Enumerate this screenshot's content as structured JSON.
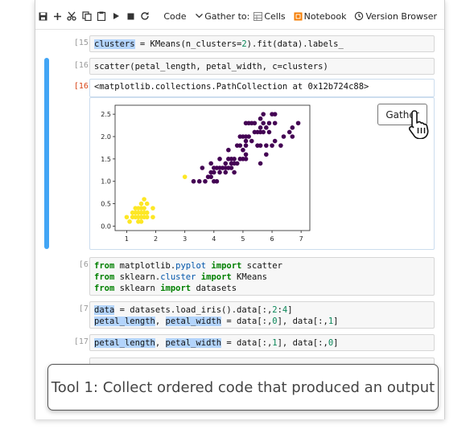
{
  "toolbar": {
    "cell_type": "Code",
    "gather_to_label": "Gather to:",
    "cells_label": "Cells",
    "notebook_label": "Notebook",
    "version_browser_label": "Version Browser"
  },
  "cells": [
    {
      "prompt": "[15]:",
      "tokens": [
        [
          "hl",
          "clusters"
        ],
        [
          "p",
          " = KMeans(n_clusters="
        ],
        [
          "num",
          "2"
        ],
        [
          "p",
          ").fit(data).labels_"
        ]
      ]
    },
    {
      "prompt": "[16]:",
      "tokens": [
        [
          "p",
          "scatter(petal_length, petal_width, c=clusters)"
        ]
      ]
    },
    {
      "prompt": "[6]:",
      "lines": [
        [
          [
            "kw",
            "from"
          ],
          [
            "p",
            " matplotlib."
          ],
          [
            "mod",
            "pyplot"
          ],
          [
            "p",
            " "
          ],
          [
            "kw",
            "import"
          ],
          [
            "p",
            " scatter"
          ]
        ],
        [
          [
            "kw",
            "from"
          ],
          [
            "p",
            " sklearn."
          ],
          [
            "mod",
            "cluster"
          ],
          [
            "p",
            " "
          ],
          [
            "kw",
            "import"
          ],
          [
            "p",
            " KMeans"
          ]
        ],
        [
          [
            "kw",
            "from"
          ],
          [
            "p",
            " sklearn "
          ],
          [
            "kw",
            "import"
          ],
          [
            "p",
            " datasets"
          ]
        ]
      ]
    },
    {
      "prompt": "[7]:",
      "lines": [
        [
          [
            "hl",
            "data"
          ],
          [
            "p",
            " = datasets.load_iris().data[:,"
          ],
          [
            "num",
            "2"
          ],
          [
            "p",
            ":"
          ],
          [
            "num",
            "4"
          ],
          [
            "p",
            "]"
          ]
        ],
        [
          [
            "hl",
            "petal_length"
          ],
          [
            "p",
            ", "
          ],
          [
            "hl",
            "petal_width"
          ],
          [
            "p",
            " = data[:,"
          ],
          [
            "num",
            "0"
          ],
          [
            "p",
            "], data[:,"
          ],
          [
            "num",
            "1"
          ],
          [
            "p",
            "]"
          ]
        ]
      ]
    },
    {
      "prompt": "[17]:",
      "tokens": [
        [
          "hl",
          "petal_length"
        ],
        [
          "p",
          ", "
        ],
        [
          "hl",
          "petal_width"
        ],
        [
          "p",
          " = data[:,"
        ],
        [
          "num",
          "1"
        ],
        [
          "p",
          "], data[:,"
        ],
        [
          "num",
          "0"
        ],
        [
          "p",
          "]"
        ]
      ]
    }
  ],
  "output": {
    "prompt": "[16]:",
    "repr": "<matplotlib.collections.PathCollection at 0x12b724c88>"
  },
  "gather_button_label": "Gather",
  "caption": "Tool 1: Collect ordered code that produced an output",
  "colors": {
    "cluster_0": "#440154",
    "cluster_1": "#fde725",
    "selection_bar": "#42a5f5",
    "highlight": "#b3d4fc"
  },
  "chart_data": {
    "type": "scatter",
    "xlim": [
      0.6,
      7.3
    ],
    "ylim": [
      -0.1,
      2.7
    ],
    "xticks": [
      "1",
      "2",
      "3",
      "4",
      "5",
      "6",
      "7"
    ],
    "yticks": [
      "0.0",
      "0.5",
      "1.0",
      "1.5",
      "2.0",
      "2.5"
    ],
    "series": [
      {
        "cluster": 1,
        "color": "#fde725",
        "points": [
          [
            1.0,
            0.2
          ],
          [
            1.1,
            0.1
          ],
          [
            1.2,
            0.2
          ],
          [
            1.2,
            0.3
          ],
          [
            1.3,
            0.2
          ],
          [
            1.3,
            0.3
          ],
          [
            1.3,
            0.4
          ],
          [
            1.4,
            0.1
          ],
          [
            1.4,
            0.2
          ],
          [
            1.4,
            0.3
          ],
          [
            1.5,
            0.1
          ],
          [
            1.5,
            0.2
          ],
          [
            1.5,
            0.3
          ],
          [
            1.5,
            0.4
          ],
          [
            1.6,
            0.2
          ],
          [
            1.6,
            0.4
          ],
          [
            1.6,
            0.6
          ],
          [
            1.7,
            0.2
          ],
          [
            1.7,
            0.3
          ],
          [
            1.7,
            0.5
          ],
          [
            1.9,
            0.2
          ],
          [
            1.9,
            0.4
          ],
          [
            1.4,
            0.4
          ],
          [
            1.6,
            0.3
          ],
          [
            1.5,
            0.5
          ],
          [
            3.0,
            1.1
          ]
        ]
      },
      {
        "cluster": 0,
        "color": "#440154",
        "points": [
          [
            3.3,
            1.0
          ],
          [
            3.5,
            1.0
          ],
          [
            3.6,
            1.3
          ],
          [
            3.7,
            1.0
          ],
          [
            3.8,
            1.1
          ],
          [
            3.9,
            1.1
          ],
          [
            3.9,
            1.2
          ],
          [
            3.9,
            1.4
          ],
          [
            4.0,
            1.0
          ],
          [
            4.0,
            1.2
          ],
          [
            4.0,
            1.3
          ],
          [
            4.1,
            1.0
          ],
          [
            4.1,
            1.3
          ],
          [
            4.2,
            1.2
          ],
          [
            4.2,
            1.3
          ],
          [
            4.2,
            1.5
          ],
          [
            4.3,
            1.3
          ],
          [
            4.4,
            1.2
          ],
          [
            4.4,
            1.3
          ],
          [
            4.4,
            1.4
          ],
          [
            4.5,
            1.3
          ],
          [
            4.5,
            1.5
          ],
          [
            4.5,
            1.7
          ],
          [
            4.6,
            1.3
          ],
          [
            4.6,
            1.4
          ],
          [
            4.6,
            1.5
          ],
          [
            4.7,
            1.2
          ],
          [
            4.7,
            1.4
          ],
          [
            4.7,
            1.5
          ],
          [
            4.8,
            1.4
          ],
          [
            4.8,
            1.8
          ],
          [
            4.9,
            1.5
          ],
          [
            4.9,
            1.8
          ],
          [
            4.9,
            2.0
          ],
          [
            5.0,
            1.5
          ],
          [
            5.0,
            1.7
          ],
          [
            5.0,
            2.0
          ],
          [
            5.1,
            1.5
          ],
          [
            5.1,
            1.6
          ],
          [
            5.1,
            1.8
          ],
          [
            5.1,
            1.9
          ],
          [
            5.1,
            2.0
          ],
          [
            5.1,
            2.3
          ],
          [
            5.2,
            2.0
          ],
          [
            5.2,
            2.3
          ],
          [
            5.3,
            1.9
          ],
          [
            5.3,
            2.3
          ],
          [
            5.4,
            2.1
          ],
          [
            5.4,
            2.3
          ],
          [
            5.5,
            1.8
          ],
          [
            5.5,
            2.1
          ],
          [
            5.6,
            1.4
          ],
          [
            5.6,
            1.8
          ],
          [
            5.6,
            2.1
          ],
          [
            5.6,
            2.2
          ],
          [
            5.6,
            2.4
          ],
          [
            5.7,
            2.1
          ],
          [
            5.7,
            2.3
          ],
          [
            5.7,
            2.5
          ],
          [
            5.8,
            1.6
          ],
          [
            5.8,
            1.8
          ],
          [
            5.8,
            2.2
          ],
          [
            5.9,
            2.1
          ],
          [
            5.9,
            2.3
          ],
          [
            6.0,
            1.8
          ],
          [
            6.0,
            2.5
          ],
          [
            6.1,
            1.9
          ],
          [
            6.1,
            2.3
          ],
          [
            6.1,
            2.5
          ],
          [
            6.3,
            1.8
          ],
          [
            6.4,
            2.0
          ],
          [
            6.6,
            2.1
          ],
          [
            6.7,
            2.0
          ],
          [
            6.7,
            2.2
          ],
          [
            6.9,
            2.3
          ]
        ]
      }
    ]
  }
}
